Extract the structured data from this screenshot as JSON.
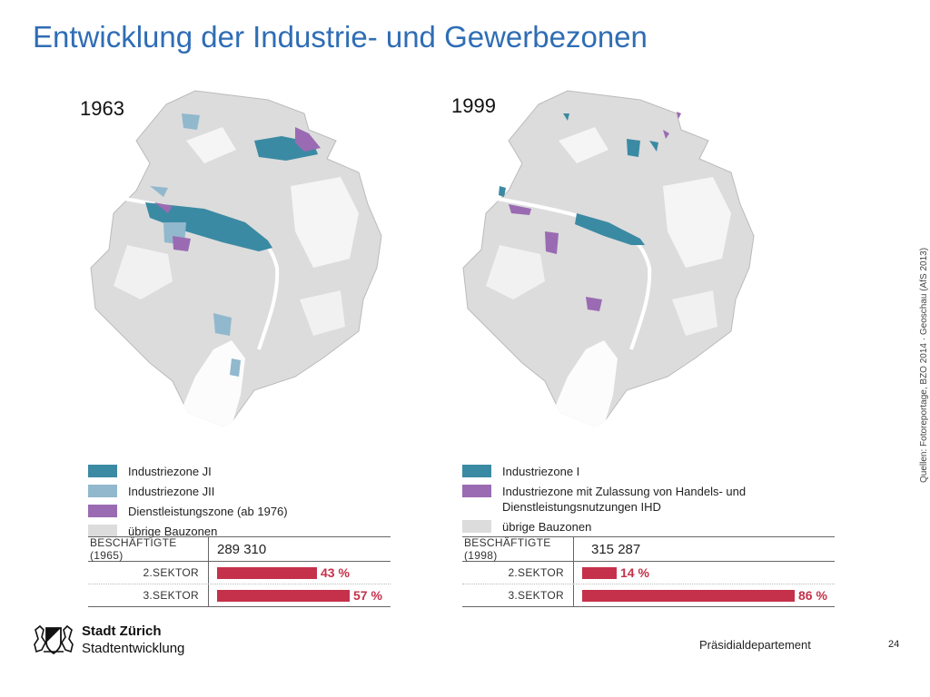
{
  "title": "Entwicklung der Industrie- und Gewerbezonen",
  "colors": {
    "title": "#2f6db5",
    "industry_I": "#3b8aa3",
    "industry_II": "#91b8cd",
    "services": "#9a6bb3",
    "other_building": "#dcdcdc",
    "sector_bar": "#c5314a"
  },
  "left": {
    "year": "1963",
    "legend": [
      {
        "label": "Industriezone JI",
        "color": "#3b8aa3"
      },
      {
        "label": "Industriezone JII",
        "color": "#91b8cd"
      },
      {
        "label": "Dienstleistungszone (ab 1976)",
        "color": "#9a6bb3"
      },
      {
        "label": "übrige Bauzonen",
        "color": "#dcdcdc"
      }
    ],
    "stats": {
      "header_label": "BESCHÄFTIGTE (1965)",
      "header_value": "289 310",
      "rows": [
        {
          "label": "2.SEKTOR",
          "percent": 43,
          "text": "43 %"
        },
        {
          "label": "3.SEKTOR",
          "percent": 57,
          "text": "57 %"
        }
      ]
    }
  },
  "right": {
    "year": "1999",
    "legend": [
      {
        "label": "Industriezone I",
        "color": "#3b8aa3"
      },
      {
        "label": "Industriezone mit Zulassung von Handels- und Dienstleistungsnutzungen IHD",
        "color": "#9a6bb3"
      },
      {
        "label": "übrige Bauzonen",
        "color": "#dcdcdc"
      }
    ],
    "stats": {
      "header_label": "BESCHÄFTIGTE (1998)",
      "header_value": "315 287",
      "rows": [
        {
          "label": "2.SEKTOR",
          "percent": 14,
          "text": "14 %"
        },
        {
          "label": "3.SEKTOR",
          "percent": 86,
          "text": "86 %"
        }
      ]
    }
  },
  "source": "Quellen: Fotoreportage, BZO 2014 · Geoschau (AfS 2013)",
  "footer": {
    "org_name": "Stadt Zürich",
    "org_unit": "Stadtentwicklung",
    "department": "Präsidialdepartement",
    "page_number": "24"
  }
}
